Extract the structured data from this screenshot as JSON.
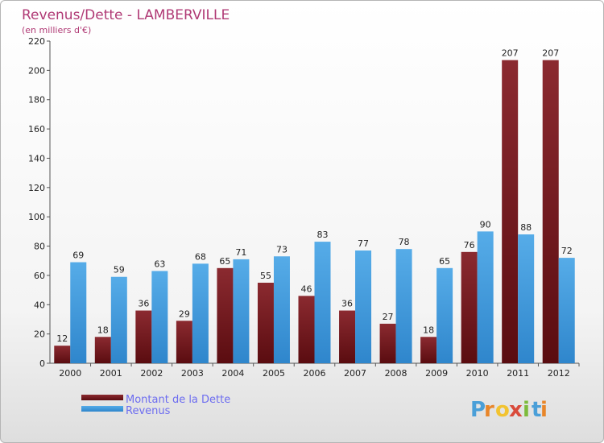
{
  "chart_data": {
    "type": "bar",
    "title": "Revenus/Dette - LAMBERVILLE",
    "subtitle": "(en milliers d'€)",
    "categories": [
      "2000",
      "2001",
      "2002",
      "2003",
      "2004",
      "2005",
      "2006",
      "2007",
      "2008",
      "2009",
      "2010",
      "2011",
      "2012"
    ],
    "series": [
      {
        "name": "Montant de la Dette",
        "color": "#7a1a1f",
        "values": [
          12,
          18,
          36,
          29,
          65,
          55,
          46,
          36,
          27,
          18,
          76,
          207,
          207
        ]
      },
      {
        "name": "Revenus",
        "color": "#3f9ae0",
        "values": [
          69,
          59,
          63,
          68,
          71,
          73,
          83,
          77,
          78,
          65,
          90,
          88,
          72
        ]
      }
    ],
    "ylim": [
      0,
      220
    ],
    "yticks": [
      0,
      20,
      40,
      60,
      80,
      100,
      120,
      140,
      160,
      180,
      200,
      220
    ],
    "grid": false,
    "legend_position": "bottom-left"
  },
  "logo": {
    "letters": [
      "P",
      "r",
      "o",
      "x",
      "i",
      "t",
      "i"
    ],
    "colors": [
      "#4a9fd8",
      "#e8862a",
      "#f2c330",
      "#d94a3a",
      "#7dbb3c",
      "#4a9fd8",
      "#e8862a"
    ]
  }
}
